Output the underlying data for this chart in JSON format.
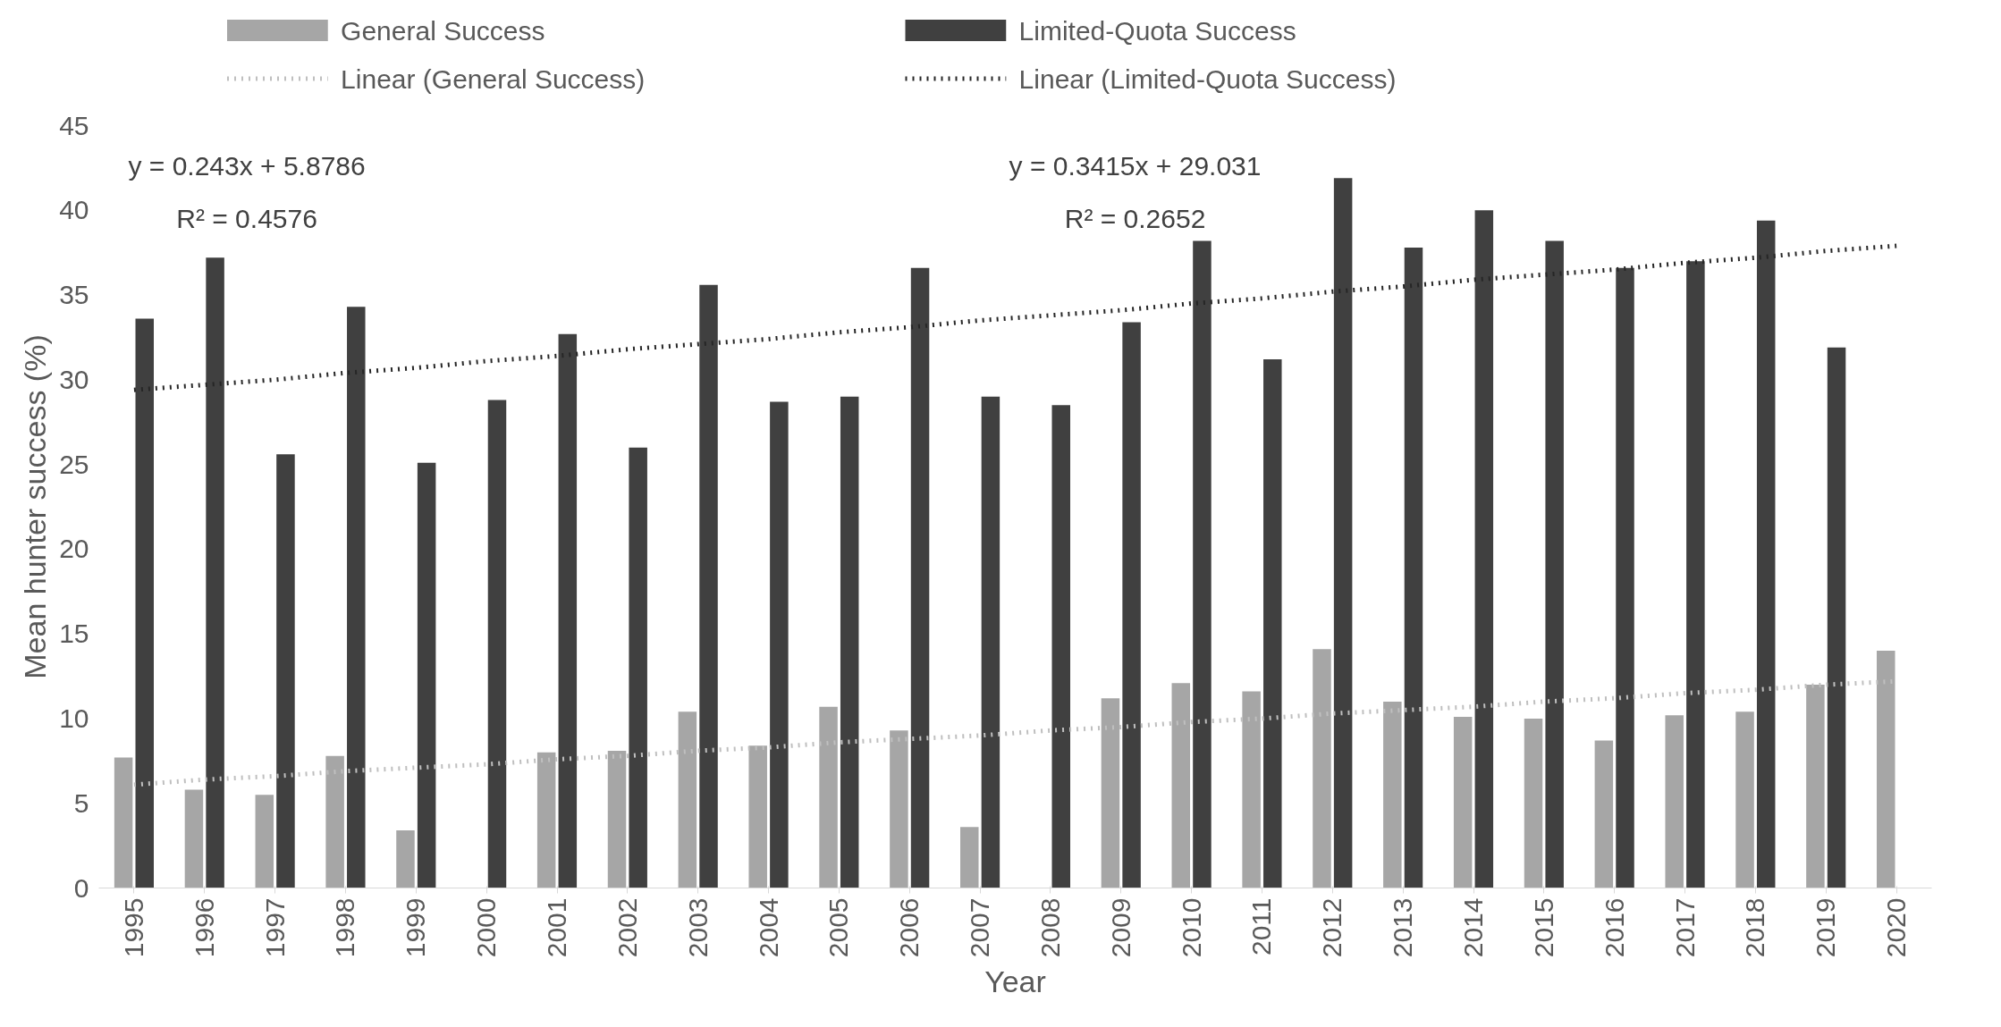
{
  "chart_data": {
    "type": "bar",
    "xlabel": "Year",
    "ylabel": "Mean hunter success (%)",
    "categories": [
      "1995",
      "1996",
      "1997",
      "1998",
      "1999",
      "2000",
      "2001",
      "2002",
      "2003",
      "2004",
      "2005",
      "2006",
      "2007",
      "2008",
      "2009",
      "2010",
      "2011",
      "2012",
      "2013",
      "2014",
      "2015",
      "2016",
      "2017",
      "2018",
      "2019",
      "2020"
    ],
    "series": [
      {
        "name": "General Success",
        "color": "#a6a6a6",
        "values": [
          7.7,
          5.8,
          5.5,
          7.8,
          3.4,
          null,
          8.0,
          8.1,
          10.4,
          8.4,
          10.7,
          9.3,
          3.6,
          null,
          11.2,
          12.1,
          11.6,
          14.1,
          11.0,
          10.1,
          10.0,
          8.7,
          10.2,
          10.4,
          12.0,
          14.0
        ]
      },
      {
        "name": "Limited-Quota Success",
        "color": "#404040",
        "values": [
          33.6,
          37.2,
          25.6,
          34.3,
          25.1,
          28.8,
          32.7,
          26.0,
          35.6,
          28.7,
          29.0,
          36.6,
          29.0,
          28.5,
          33.4,
          38.2,
          31.2,
          41.9,
          37.8,
          40.0,
          38.2,
          36.6,
          37.0,
          39.4,
          31.9,
          null
        ]
      },
      {
        "name": "Linear (General Success)",
        "type": "line",
        "line_style": "dotted",
        "color": "#bfbfbf",
        "values": [
          6.1,
          6.4,
          6.6,
          6.9,
          7.1,
          7.3,
          7.6,
          7.8,
          8.1,
          8.3,
          8.6,
          8.8,
          9.0,
          9.3,
          9.5,
          9.8,
          10.0,
          10.3,
          10.5,
          10.7,
          11.0,
          11.2,
          11.5,
          11.7,
          12.0,
          12.2
        ]
      },
      {
        "name": "Linear (Limited-Quota Success)",
        "type": "line",
        "line_style": "dotted",
        "color": "#262626",
        "values": [
          29.4,
          29.7,
          30.0,
          30.4,
          30.7,
          31.1,
          31.4,
          31.8,
          32.1,
          32.4,
          32.8,
          33.1,
          33.5,
          33.8,
          34.1,
          34.5,
          34.8,
          35.2,
          35.5,
          35.9,
          36.2,
          36.5,
          36.9,
          37.2,
          37.6,
          37.9
        ]
      }
    ],
    "annotations": [
      "y = 0.243x + 5.8786",
      "R² = 0.4576",
      "y = 0.3415x + 29.031",
      "R² = 0.2652"
    ],
    "ylim": [
      0,
      45
    ],
    "yticks": [
      0,
      5,
      10,
      15,
      20,
      25,
      30,
      35,
      40,
      45
    ],
    "grid": false,
    "legend": "top"
  }
}
